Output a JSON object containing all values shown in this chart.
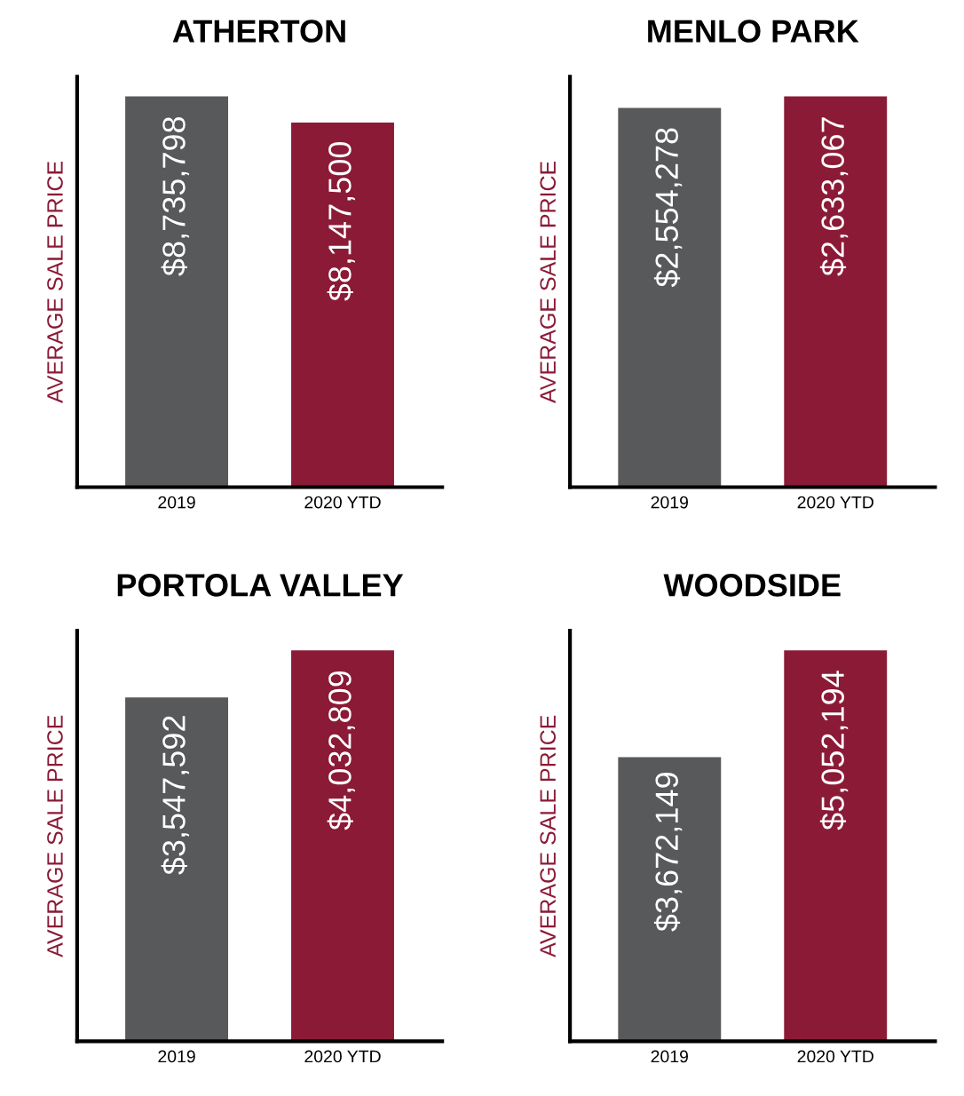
{
  "chart_data": [
    {
      "type": "bar",
      "title": "ATHERTON",
      "ylabel": "AVERAGE SALE PRICE",
      "categories": [
        "2019",
        "2020 YTD"
      ],
      "values": [
        8735798,
        8147500
      ],
      "value_labels": [
        "$8,735,798",
        "$8,147,500"
      ],
      "colors": [
        "#58595b",
        "#8b1a36"
      ],
      "grid": false,
      "legend": false,
      "tick_labels": "x"
    },
    {
      "type": "bar",
      "title": "MENLO PARK",
      "ylabel": "AVERAGE SALE PRICE",
      "categories": [
        "2019",
        "2020 YTD"
      ],
      "values": [
        2554278,
        2633067
      ],
      "value_labels": [
        "$2,554,278",
        "$2,633,067"
      ],
      "colors": [
        "#58595b",
        "#8b1a36"
      ],
      "grid": false,
      "legend": false,
      "tick_labels": "x"
    },
    {
      "type": "bar",
      "title": "PORTOLA VALLEY",
      "ylabel": "AVERAGE SALE PRICE",
      "categories": [
        "2019",
        "2020 YTD"
      ],
      "values": [
        3547592,
        4032809
      ],
      "value_labels": [
        "$3,547,592",
        "$4,032,809"
      ],
      "colors": [
        "#58595b",
        "#8b1a36"
      ],
      "grid": false,
      "legend": false,
      "tick_labels": "x"
    },
    {
      "type": "bar",
      "title": "WOODSIDE",
      "ylabel": "AVERAGE SALE PRICE",
      "categories": [
        "2019",
        "2020 YTD"
      ],
      "values": [
        3672149,
        5052194
      ],
      "value_labels": [
        "$3,672,149",
        "$5,052,194"
      ],
      "colors": [
        "#58595b",
        "#8b1a36"
      ],
      "grid": false,
      "legend": false,
      "tick_labels": "x"
    }
  ]
}
